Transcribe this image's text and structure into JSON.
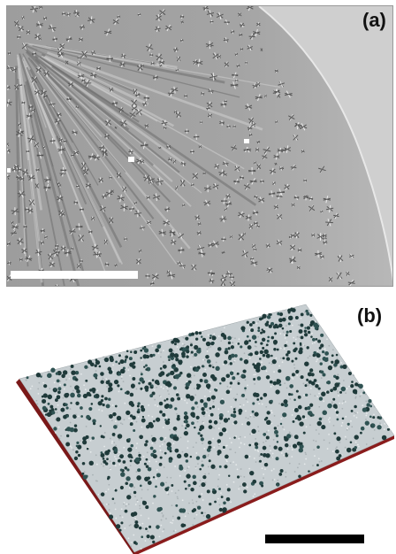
{
  "figure": {
    "panel_a": {
      "label": "(a)"
    },
    "panel_b": {
      "label": "(b)"
    }
  },
  "colors": {
    "micrograph_background": "#a9a9a9",
    "dendrite_dark": "#1f3a3a",
    "substrate_light": "#c9d0d2",
    "base_edge": "#8a1c1c",
    "scalebar_a": "#ffffff",
    "scalebar_b": "#000000"
  }
}
